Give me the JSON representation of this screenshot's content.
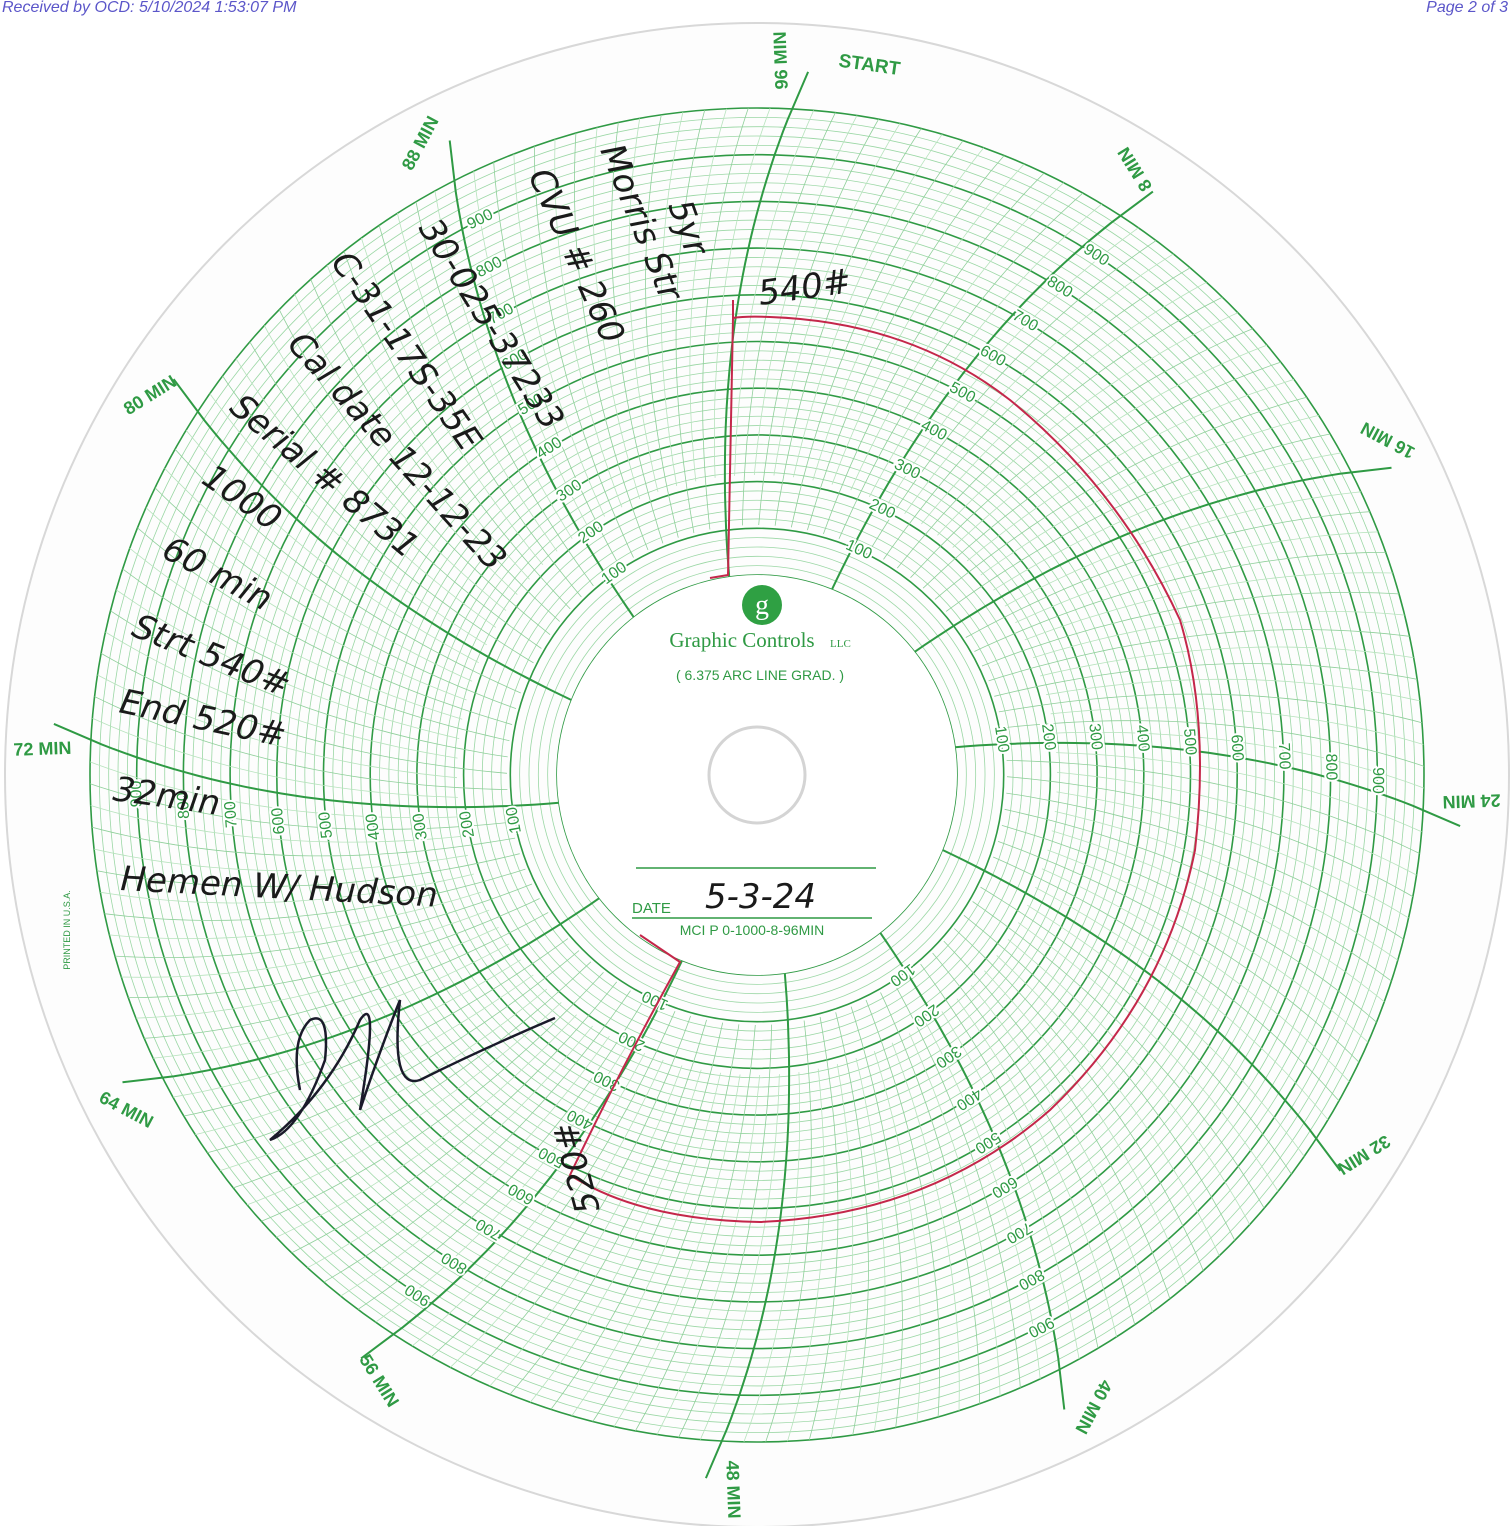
{
  "header": {
    "left": "Received by OCD: 5/10/2024 1:53:07 PM",
    "right": "Page 2 of 3"
  },
  "chart_card": {
    "start_label": "START",
    "time_labels": [
      "96 MIN",
      "8 MIN",
      "16 MIN",
      "24 MIN",
      "32 MIN",
      "40 MIN",
      "48 MIN",
      "56 MIN",
      "64 MIN",
      "72 MIN",
      "80 MIN",
      "88 MIN"
    ],
    "ring_labels": [
      "100",
      "200",
      "300",
      "400",
      "500",
      "600",
      "700",
      "800",
      "900"
    ],
    "logo": "g",
    "brand": "Graphic Controls",
    "brand_suffix": "LLC",
    "grad_note": "( 6.375 ARC LINE GRAD. )",
    "date_label": "DATE",
    "model": "MCI P 0-1000-8-96MIN",
    "printed": "PRINTED IN U.S.A."
  },
  "handwriting": {
    "notes": [
      "5yr",
      "Morris Str",
      "CVU # 260",
      "30-025-37233",
      "C-31-17S-35E",
      "Cal date 12-12-23",
      "Serial # 8731",
      "1000",
      "60 min",
      "Strt 540#",
      "End 520#",
      "32min",
      "Hemen W/ Hudson"
    ],
    "date": "5-3-24",
    "start_mark": "540#",
    "end_mark": "520#"
  }
}
